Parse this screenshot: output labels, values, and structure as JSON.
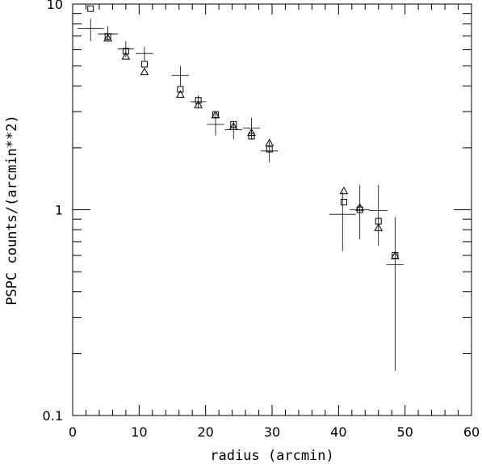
{
  "chart_data": {
    "type": "scatter",
    "title": "",
    "xlabel": "radius (arcmin)",
    "ylabel": "PSPC counts/(arcmin**2)",
    "xlim": [
      0,
      60
    ],
    "ylim": [
      0.1,
      10
    ],
    "yscale": "log",
    "grid": false,
    "x_ticks": [
      "0",
      "10",
      "20",
      "30",
      "40",
      "50",
      "60"
    ],
    "y_ticks": [
      "0.1",
      "1",
      "10"
    ],
    "series": [
      {
        "marker": "cross-errorbar",
        "points": [
          {
            "x": 2.7,
            "y": 7.6,
            "xerr": 2.0,
            "ylo": 6.6,
            "yhi": 8.5
          },
          {
            "x": 5.3,
            "y": 7.15,
            "xerr": 1.5,
            "ylo": 6.6,
            "yhi": 7.8
          },
          {
            "x": 8.0,
            "y": 6.05,
            "xerr": 1.2,
            "ylo": 5.5,
            "yhi": 6.6
          },
          {
            "x": 10.8,
            "y": 5.75,
            "xerr": 1.3,
            "ylo": 5.3,
            "yhi": 6.2
          },
          {
            "x": 16.2,
            "y": 4.5,
            "xerr": 1.3,
            "ylo": 4.0,
            "yhi": 5.0
          },
          {
            "x": 18.9,
            "y": 3.35,
            "xerr": 1.2,
            "ylo": 3.1,
            "yhi": 3.6
          },
          {
            "x": 21.5,
            "y": 2.6,
            "xerr": 1.3,
            "ylo": 2.3,
            "yhi": 2.95
          },
          {
            "x": 24.2,
            "y": 2.45,
            "xerr": 1.3,
            "ylo": 2.2,
            "yhi": 2.7
          },
          {
            "x": 26.9,
            "y": 2.5,
            "xerr": 1.3,
            "ylo": 2.2,
            "yhi": 2.8
          },
          {
            "x": 29.6,
            "y": 1.93,
            "xerr": 1.3,
            "ylo": 1.7,
            "yhi": 2.15
          },
          {
            "x": 40.6,
            "y": 0.95,
            "xerr": 2.0,
            "ylo": 0.63,
            "yhi": 1.22
          },
          {
            "x": 43.2,
            "y": 1.0,
            "xerr": 1.5,
            "ylo": 0.72,
            "yhi": 1.32
          },
          {
            "x": 46.0,
            "y": 0.99,
            "xerr": 1.4,
            "ylo": 0.67,
            "yhi": 1.32
          },
          {
            "x": 48.5,
            "y": 0.54,
            "xerr": 1.3,
            "ylo": 0.165,
            "yhi": 0.92
          }
        ]
      },
      {
        "marker": "square",
        "points": [
          {
            "x": 2.7,
            "y": 9.5
          },
          {
            "x": 5.3,
            "y": 6.95
          },
          {
            "x": 8.0,
            "y": 5.9
          },
          {
            "x": 10.8,
            "y": 5.1
          },
          {
            "x": 16.2,
            "y": 3.85
          },
          {
            "x": 18.9,
            "y": 3.4
          },
          {
            "x": 21.5,
            "y": 2.9
          },
          {
            "x": 24.2,
            "y": 2.6
          },
          {
            "x": 26.9,
            "y": 2.28
          },
          {
            "x": 29.6,
            "y": 1.97
          },
          {
            "x": 40.8,
            "y": 1.09
          },
          {
            "x": 43.2,
            "y": 1.0
          },
          {
            "x": 46.0,
            "y": 0.88
          },
          {
            "x": 48.5,
            "y": 0.6
          }
        ]
      },
      {
        "marker": "triangle",
        "points": [
          {
            "x": 5.3,
            "y": 6.85
          },
          {
            "x": 8.0,
            "y": 5.6
          },
          {
            "x": 10.8,
            "y": 4.7
          },
          {
            "x": 16.2,
            "y": 3.65
          },
          {
            "x": 18.9,
            "y": 3.25
          },
          {
            "x": 21.5,
            "y": 2.9
          },
          {
            "x": 24.2,
            "y": 2.55
          },
          {
            "x": 26.9,
            "y": 2.38
          },
          {
            "x": 29.6,
            "y": 2.12
          },
          {
            "x": 40.8,
            "y": 1.24
          },
          {
            "x": 43.2,
            "y": 1.03
          },
          {
            "x": 46.0,
            "y": 0.82
          },
          {
            "x": 48.5,
            "y": 0.6
          }
        ]
      }
    ]
  }
}
